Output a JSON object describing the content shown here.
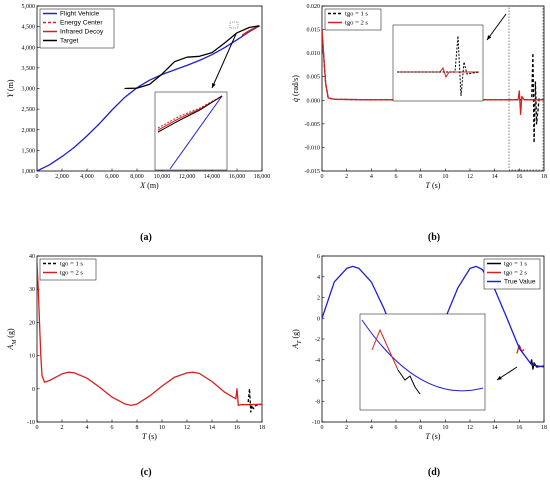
{
  "chart_data": [
    {
      "panel": "(a)",
      "type": "line",
      "xlabel": "X",
      "xunit": " (m)",
      "ylabel": "Y",
      "yunit": " (m)",
      "xlim": [
        0,
        18000
      ],
      "ylim": [
        1000,
        5000
      ],
      "xticks": [
        "0",
        "2,000",
        "4,000",
        "6,000",
        "8,000",
        "10,000",
        "12,000",
        "14,000",
        "16,000",
        "18,000"
      ],
      "yticks": [
        "1,000",
        "1,500",
        "2,000",
        "2,500",
        "3,000",
        "3,500",
        "4,000",
        "4,500",
        "5,000"
      ],
      "legend": "top-left",
      "series": [
        {
          "name": "Flight Vehicle",
          "color": "#1f1fd6",
          "dash": "solid",
          "x": [
            0,
            1000,
            2000,
            3000,
            4000,
            5000,
            6000,
            7000,
            8000,
            9000,
            10000,
            11000,
            12000,
            13000,
            14000,
            15000,
            16000,
            17000,
            17800
          ],
          "y": [
            1000,
            1150,
            1350,
            1580,
            1850,
            2150,
            2480,
            2780,
            3020,
            3200,
            3340,
            3450,
            3560,
            3680,
            3820,
            3990,
            4180,
            4380,
            4520
          ]
        },
        {
          "name": "Energy Center",
          "color": "#d62020",
          "dash": "dash",
          "x": [
            16500,
            17000,
            17500,
            17800
          ],
          "y": [
            4300,
            4400,
            4480,
            4520
          ]
        },
        {
          "name": "Infrared Decoy",
          "color": "#d62020",
          "dash": "solid",
          "x": [
            16400,
            16900,
            17400,
            17800
          ],
          "y": [
            4290,
            4390,
            4470,
            4515
          ]
        },
        {
          "name": "Target",
          "color": "#000000",
          "dash": "solid",
          "x": [
            7000,
            8000,
            9000,
            10000,
            11000,
            12000,
            13000,
            14000,
            15000,
            16000,
            17000,
            17800
          ],
          "y": [
            3000,
            3010,
            3100,
            3350,
            3650,
            3760,
            3780,
            3870,
            4100,
            4350,
            4480,
            4520
          ]
        }
      ]
    },
    {
      "panel": "(b)",
      "type": "line",
      "xlabel": "T",
      "xunit": " (s)",
      "ylabel": "q̇",
      "yunit": " (rad/s)",
      "xlim": [
        0,
        18
      ],
      "ylim": [
        -0.015,
        0.02
      ],
      "xticks": [
        "0",
        "2",
        "4",
        "6",
        "8",
        "10",
        "12",
        "14",
        "16",
        "18"
      ],
      "yticks": [
        "-0.015",
        "-0.010",
        "-0.005",
        "0.000",
        "0.005",
        "0.010",
        "0.015",
        "0.020"
      ],
      "legend": "top-left",
      "series": [
        {
          "name": "tgo = 1 s",
          "color": "#000000",
          "dash": "dash",
          "x": [
            0,
            0.1,
            0.2,
            0.3,
            0.5,
            1,
            4,
            8,
            12,
            16,
            17,
            17.1,
            17.2,
            17.3,
            17.4,
            17.6,
            18
          ],
          "y": [
            0.015,
            0.011,
            0.007,
            0.0035,
            0.0005,
            0.0002,
            0.0001,
            0.0001,
            0.0001,
            0.0001,
            0.0001,
            0.01,
            -0.009,
            0.004,
            -0.005,
            0.0003,
            0.0001
          ]
        },
        {
          "name": "tgo = 2 s",
          "color": "#d62020",
          "dash": "solid",
          "x": [
            0,
            0.1,
            0.2,
            0.3,
            0.5,
            1,
            4,
            8,
            12,
            15.9,
            16,
            16.1,
            16.2,
            16.4,
            17,
            18
          ],
          "y": [
            0.015,
            0.011,
            0.007,
            0.0035,
            0.0005,
            0.0002,
            0.0001,
            0.0001,
            0.0001,
            0.0001,
            0.002,
            -0.003,
            0.0008,
            0.0001,
            0.0001,
            0.0001
          ]
        }
      ]
    },
    {
      "panel": "(c)",
      "type": "line",
      "xlabel": "T",
      "xunit": " (s)",
      "ylabel": "A",
      "ysub": "M",
      "yunit": " (g)",
      "xlim": [
        0,
        18
      ],
      "ylim": [
        -10,
        40
      ],
      "xticks": [
        "0",
        "2",
        "4",
        "6",
        "8",
        "10",
        "12",
        "14",
        "16",
        "18"
      ],
      "yticks": [
        "-10",
        "0",
        "10",
        "20",
        "30",
        "40"
      ],
      "legend": "top-left",
      "series": [
        {
          "name": "tgo = 1 s",
          "color": "#000000",
          "dash": "dash",
          "x": [
            16.9,
            17.0,
            17.1,
            17.2,
            17.3,
            17.5,
            18
          ],
          "y": [
            -4,
            0,
            -7,
            -5,
            -6,
            -5,
            -4.6
          ]
        },
        {
          "name": "tgo = 2 s",
          "color": "#d62020",
          "dash": "solid",
          "x": [
            0,
            0.1,
            0.2,
            0.3,
            0.4,
            0.6,
            1,
            1.5,
            2,
            2.5,
            3,
            4,
            5,
            6,
            7,
            7.5,
            8,
            9,
            10,
            11,
            12,
            12.5,
            13,
            14,
            15,
            15.9,
            16,
            16.1,
            16.3,
            17,
            18
          ],
          "y": [
            38,
            30,
            20,
            10,
            4,
            2,
            2.5,
            3.5,
            4.5,
            5,
            4.8,
            3.2,
            0.5,
            -2.5,
            -4.5,
            -5,
            -4.6,
            -2.2,
            0.8,
            3.5,
            4.8,
            5,
            4.6,
            2.2,
            -1,
            -3,
            0,
            -5,
            -4.8,
            -4.8,
            -4.6
          ]
        }
      ]
    },
    {
      "panel": "(d)",
      "type": "line",
      "xlabel": "T",
      "xunit": " (s)",
      "ylabel": "A",
      "ysub": "T",
      "yunit": " (g)",
      "xlim": [
        0,
        18
      ],
      "ylim": [
        -10,
        6
      ],
      "xticks": [
        "0",
        "2",
        "4",
        "6",
        "8",
        "10",
        "12",
        "14",
        "16",
        "18"
      ],
      "yticks": [
        "-10",
        "-8",
        "-6",
        "-4",
        "-2",
        "0",
        "2",
        "4",
        "6"
      ],
      "legend": "top-right",
      "series": [
        {
          "name": "tgo = 1 s",
          "color": "#000000",
          "dash": "solid",
          "x": [
            16.9,
            17.0,
            17.1,
            17.2,
            17.4,
            18
          ],
          "y": [
            -4.4,
            -4.0,
            -4.9,
            -4.3,
            -4.7,
            -4.6
          ]
        },
        {
          "name": "tgo = 2 s",
          "color": "#d62020",
          "dash": "solid",
          "x": [
            15.8,
            16.0,
            16.2,
            16.4
          ],
          "y": [
            -3.4,
            -2.6,
            -3.2,
            -3.0
          ]
        },
        {
          "name": "True Value",
          "color": "#1f1fd6",
          "dash": "solid",
          "x": [
            0,
            1,
            2,
            2.5,
            3,
            4,
            5,
            6,
            7,
            7.5,
            8,
            9,
            10,
            11,
            12,
            12.5,
            13,
            14,
            15,
            16,
            17,
            18
          ],
          "y": [
            0,
            3.5,
            4.8,
            5,
            4.8,
            3.5,
            1,
            -2,
            -4.4,
            -5,
            -4.6,
            -3,
            0,
            2.9,
            4.8,
            5,
            4.7,
            2.8,
            0,
            -2.9,
            -4.5,
            -4.7
          ]
        }
      ]
    }
  ],
  "captions": [
    "(a)",
    "(b)",
    "(c)",
    "(d)"
  ]
}
